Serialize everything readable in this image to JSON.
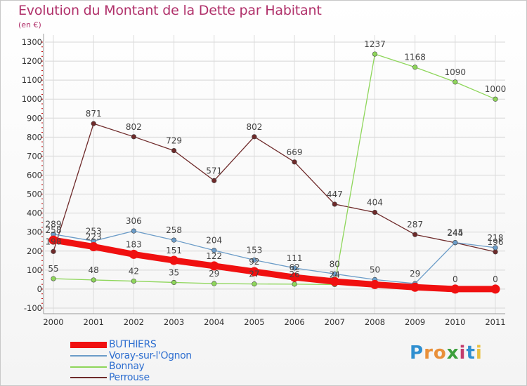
{
  "header": {
    "title": "Evolution du Montant de la Dette par Habitant",
    "unit": "(en €)"
  },
  "logo": {
    "text": "Proxiti",
    "letter_colors": [
      "#2f8fd0",
      "#e9903a",
      "#e9903a",
      "#3ca03c",
      "#c23c6c",
      "#2f8fd0",
      "#e9c040"
    ]
  },
  "chart_data": {
    "type": "line",
    "title": "Evolution du Montant de la Dette par Habitant",
    "ylabel": "(en €)",
    "xlabel": "",
    "x": [
      "2000",
      "2001",
      "2002",
      "2003",
      "2004",
      "2005",
      "2006",
      "2007",
      "2008",
      "2009",
      "2010",
      "2011"
    ],
    "ylim": [
      -100,
      1300
    ],
    "yticks": [
      -100,
      0,
      100,
      200,
      300,
      400,
      500,
      600,
      700,
      800,
      900,
      1000,
      1100,
      1200,
      1300
    ],
    "grid": true,
    "legend_position": "bottom-left",
    "series": [
      {
        "name": "BUTHIERS",
        "color": "#f01010",
        "values": [
          258,
          223,
          183,
          151,
          122,
          92,
          62,
          40,
          24,
          10,
          0,
          0
        ],
        "labels": [
          "258",
          "223",
          "183",
          "151",
          "122",
          "92",
          "62",
          "",
          "",
          "",
          "0",
          "0"
        ]
      },
      {
        "name": "Voray-sur-l'Ognon",
        "color": "#6b9cc8",
        "values": [
          289,
          253,
          306,
          258,
          204,
          153,
          111,
          80,
          50,
          29,
          245,
          218
        ],
        "labels": [
          "289",
          "253",
          "306",
          "258",
          "204",
          "153",
          "111",
          "80",
          "50",
          "29",
          "245",
          "218"
        ]
      },
      {
        "name": "Bonnay",
        "color": "#8ed65a",
        "values": [
          55,
          48,
          42,
          35,
          29,
          27,
          26,
          24,
          1237,
          1168,
          1090,
          1000
        ],
        "labels": [
          "55",
          "48",
          "42",
          "35",
          "29",
          "27",
          "26",
          "24",
          "1237",
          "1168",
          "1090",
          "1000"
        ]
      },
      {
        "name": "Perrouse",
        "color": "#6e2a2a",
        "values": [
          198,
          871,
          802,
          729,
          571,
          802,
          669,
          447,
          404,
          287,
          244,
          196
        ],
        "labels": [
          "198",
          "871",
          "802",
          "729",
          "571",
          "802",
          "669",
          "447",
          "404",
          "287",
          "244",
          "196"
        ]
      }
    ]
  }
}
